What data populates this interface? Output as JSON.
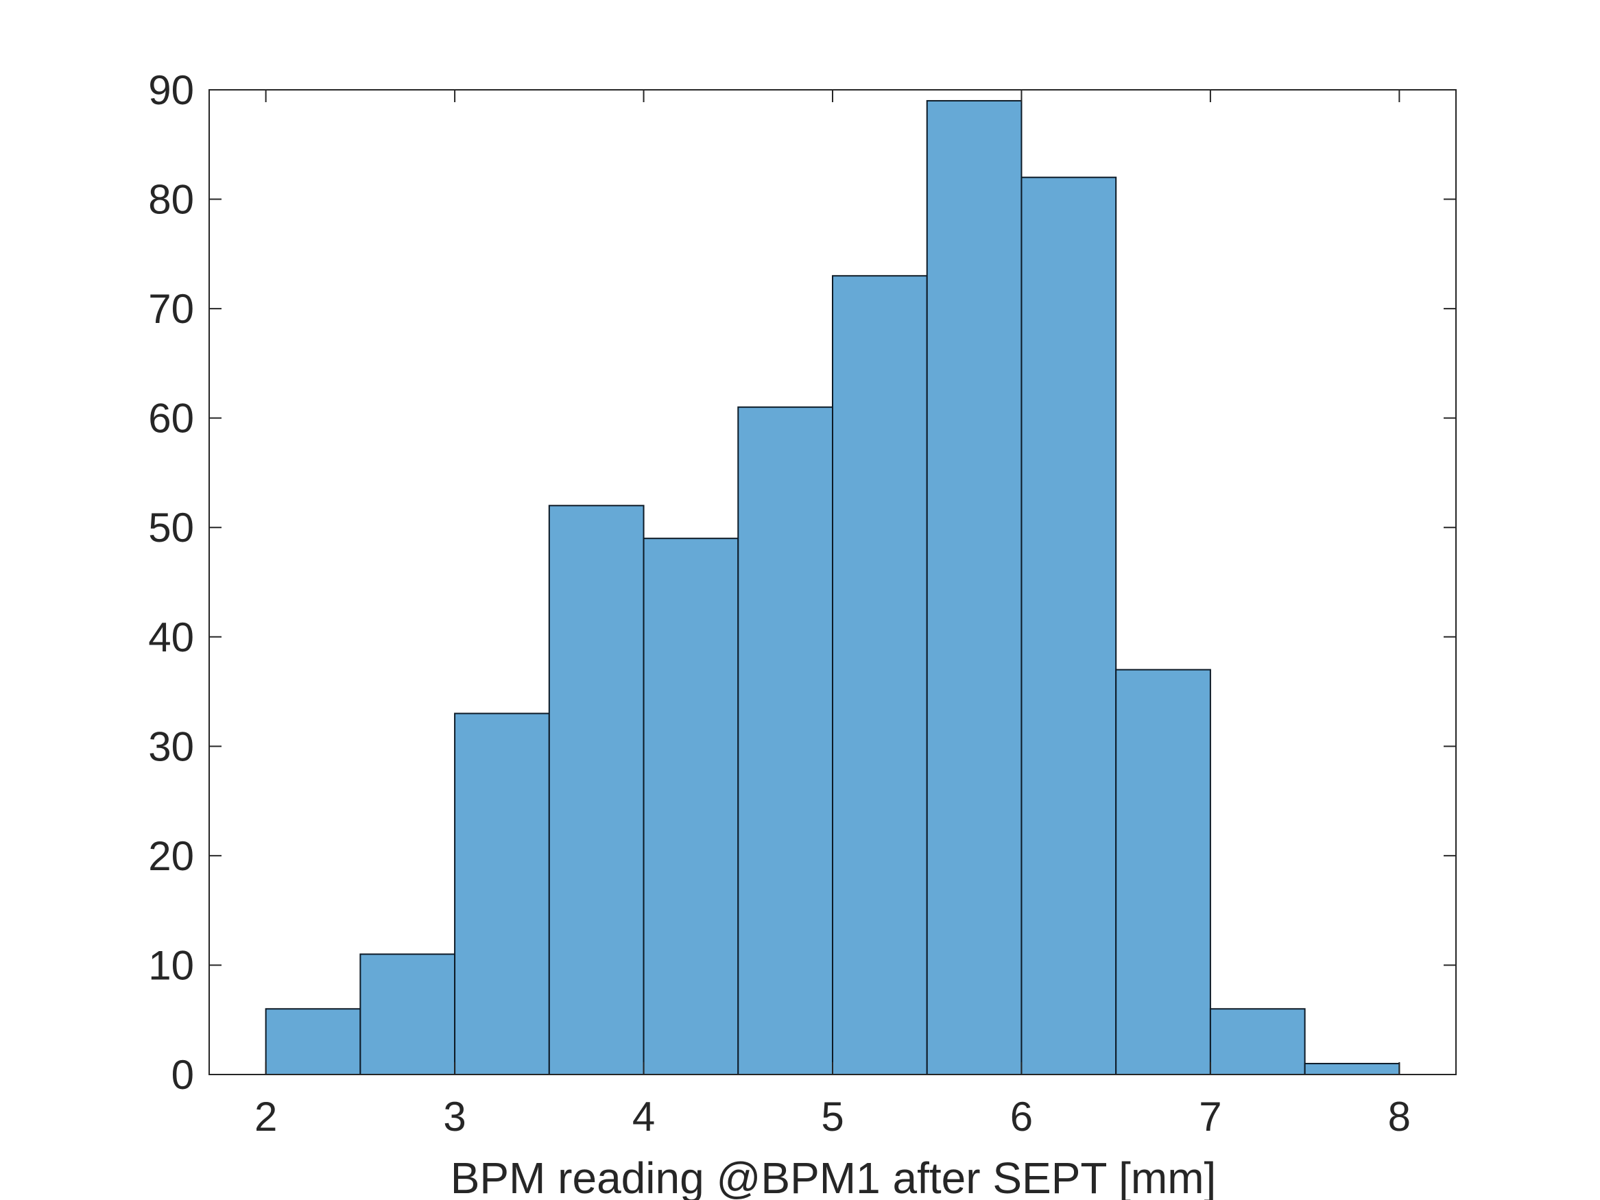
{
  "chart_data": {
    "type": "bar",
    "subtype": "histogram",
    "bin_edges": [
      2,
      2.5,
      3,
      3.5,
      4,
      4.5,
      5,
      5.5,
      6,
      6.5,
      7,
      7.5,
      8
    ],
    "values": [
      6,
      11,
      33,
      52,
      49,
      61,
      73,
      89,
      82,
      37,
      6,
      1
    ],
    "title": "",
    "xlabel": "BPM reading @BPM1 after SEPT [mm]",
    "ylabel": "",
    "xlim": [
      1.7,
      8.3
    ],
    "ylim": [
      0,
      90
    ],
    "xticks": [
      "2",
      "3",
      "4",
      "5",
      "6",
      "7",
      "8"
    ],
    "yticks": [
      "0",
      "10",
      "20",
      "30",
      "40",
      "50",
      "60",
      "70",
      "80",
      "90"
    ],
    "grid": false,
    "legend": "none",
    "colors": {
      "bar_fill": "#66a9d6",
      "bar_edge": "#0d1a26",
      "axis": "#262626",
      "text": "#262626"
    }
  }
}
